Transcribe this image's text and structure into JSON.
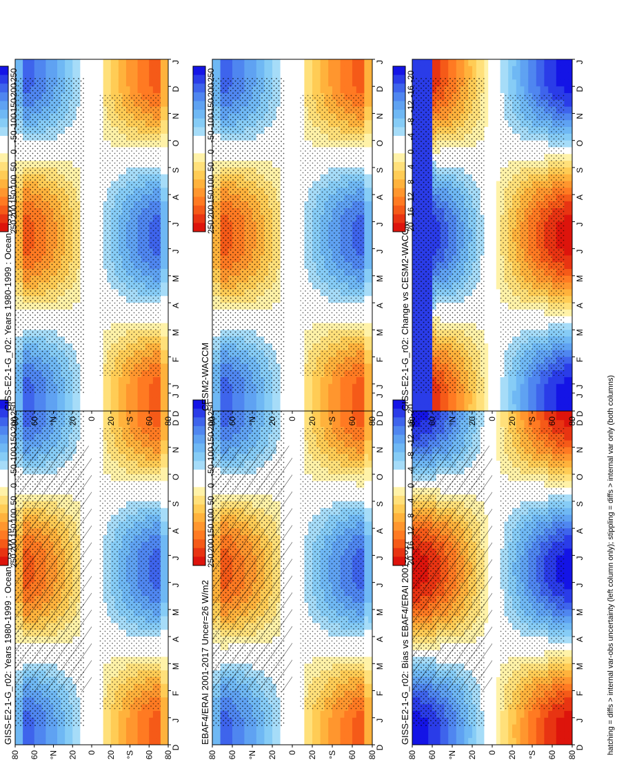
{
  "caption": "hatching = diffs > internal var-obs uncertainty (left column only); stippling = diffs > internal var only (both columns)",
  "colors": {
    "abs": [
      "#1414e6",
      "#2a3ce8",
      "#3e64ec",
      "#4f86f0",
      "#5fa2f2",
      "#6fb8f4",
      "#86ccf6",
      "#a6dcf8",
      "#ffffff",
      "#ffffff",
      "#fff2a8",
      "#ffe07a",
      "#ffcc55",
      "#ffb23c",
      "#ff962e",
      "#ff7a22",
      "#f55a18",
      "#e83412",
      "#dd140c"
    ],
    "diff": [
      "#1414e6",
      "#2a3ce8",
      "#3e64ec",
      "#4f86f0",
      "#5fa2f2",
      "#6fb8f4",
      "#86ccf6",
      "#a6dcf8",
      "#ffffff",
      "#ffffff",
      "#fff2a8",
      "#ffe07a",
      "#ffcc55",
      "#ffb23c",
      "#ff962e",
      "#ff7a22",
      "#f55a18",
      "#e83412",
      "#dd140c"
    ]
  },
  "chart_data": [
    {
      "type": "heatmap",
      "position": "left-top",
      "title": "GISS-E2-1-G_r02: Years 1980-1999 : Ocean : fs (W m",
      "title_sup": "-2",
      "title_end": ")",
      "x_ticks": [
        "D",
        "J",
        "F",
        "M",
        "A",
        "M",
        "J",
        "J",
        "A",
        "S",
        "O",
        "N",
        "D",
        "J"
      ],
      "y_ticks": [
        "80",
        "60",
        "°N",
        "20",
        "0",
        "20",
        "°S",
        "60",
        "80"
      ],
      "scale": "abs",
      "hatching": "left",
      "stippling": true,
      "colorbar": {
        "ticks": [
          "250",
          "200",
          "150",
          "100",
          "50",
          "0",
          "-50",
          "-100",
          "-150",
          "-200",
          "-250"
        ]
      }
    },
    {
      "type": "heatmap",
      "position": "left-middle",
      "title": "EBAF4/ERAI 2001-2017 Uncer=26 W/m2",
      "x_ticks": [
        "D",
        "J",
        "F",
        "M",
        "A",
        "M",
        "J",
        "J",
        "A",
        "S",
        "O",
        "N",
        "D",
        "J"
      ],
      "y_ticks": [
        "80",
        "60",
        "°N",
        "20",
        "0",
        "20",
        "°S",
        "60",
        "80"
      ],
      "scale": "abs",
      "hatching": "left",
      "stippling": true,
      "colorbar": {
        "ticks": [
          "250",
          "200",
          "150",
          "100",
          "50",
          "0",
          "-50",
          "-100",
          "-150",
          "-200",
          "-250"
        ]
      }
    },
    {
      "type": "heatmap",
      "position": "left-bottom",
      "title": "GISS-E2-1-G_r02: Bias vs EBAF4/ERAI 2001-2017",
      "x_ticks": [
        "D",
        "J",
        "F",
        "M",
        "A",
        "M",
        "J",
        "J",
        "A",
        "S",
        "O",
        "N",
        "D",
        "J"
      ],
      "y_ticks": [
        "80",
        "60",
        "°N",
        "20",
        "0",
        "20",
        "°S",
        "60",
        "80"
      ],
      "scale": "diff",
      "hatching": "left",
      "stippling": true,
      "colorbar": {
        "ticks": [
          "20",
          "16",
          "12",
          "8",
          "4",
          "0",
          "-4",
          "-8",
          "-12",
          "-16",
          "-20"
        ]
      }
    },
    {
      "type": "heatmap",
      "position": "right-top",
      "title": "GISS-E2-1-G_r02: Years 1980-1999 : Ocean : fs (W m",
      "title_sup": "-2",
      "title_end": ")",
      "x_ticks": [
        "D",
        "J",
        "F",
        "M",
        "A",
        "M",
        "J",
        "J",
        "A",
        "S",
        "O",
        "N",
        "D",
        "J"
      ],
      "y_ticks": [
        "80",
        "60",
        "°N",
        "20",
        "0",
        "20",
        "°S",
        "60",
        "80"
      ],
      "scale": "abs",
      "hatching": "none",
      "stippling": true,
      "colorbar": {
        "ticks": [
          "250",
          "200",
          "150",
          "100",
          "50",
          "0",
          "-50",
          "-100",
          "-150",
          "-200",
          "-250"
        ]
      }
    },
    {
      "type": "heatmap",
      "position": "right-middle",
      "title": "CESM2-WACCM",
      "x_ticks": [
        "D",
        "J",
        "F",
        "M",
        "A",
        "M",
        "J",
        "J",
        "A",
        "S",
        "O",
        "N",
        "D",
        "J"
      ],
      "y_ticks": [
        "80",
        "60",
        "°N",
        "20",
        "0",
        "20",
        "°S",
        "60",
        "80"
      ],
      "scale": "abs",
      "hatching": "none",
      "stippling": true,
      "colorbar": {
        "ticks": [
          "250",
          "200",
          "150",
          "100",
          "50",
          "0",
          "-50",
          "-100",
          "-150",
          "-200",
          "-250"
        ]
      }
    },
    {
      "type": "heatmap",
      "position": "right-bottom",
      "title": "GISS-E2-1-G_r02: Change vs CESM2-WACCM",
      "x_ticks": [
        "D",
        "J",
        "F",
        "M",
        "A",
        "M",
        "J",
        "J",
        "A",
        "S",
        "O",
        "N",
        "D",
        "J"
      ],
      "y_ticks": [
        "80",
        "60",
        "°N",
        "20",
        "0",
        "20",
        "°S",
        "60",
        "80"
      ],
      "scale": "diff",
      "hatching": "none",
      "stippling": true,
      "colorbar": {
        "ticks": [
          "20",
          "16",
          "12",
          "8",
          "4",
          "0",
          "-4",
          "-8",
          "-12",
          "-16",
          "-20"
        ]
      }
    }
  ]
}
